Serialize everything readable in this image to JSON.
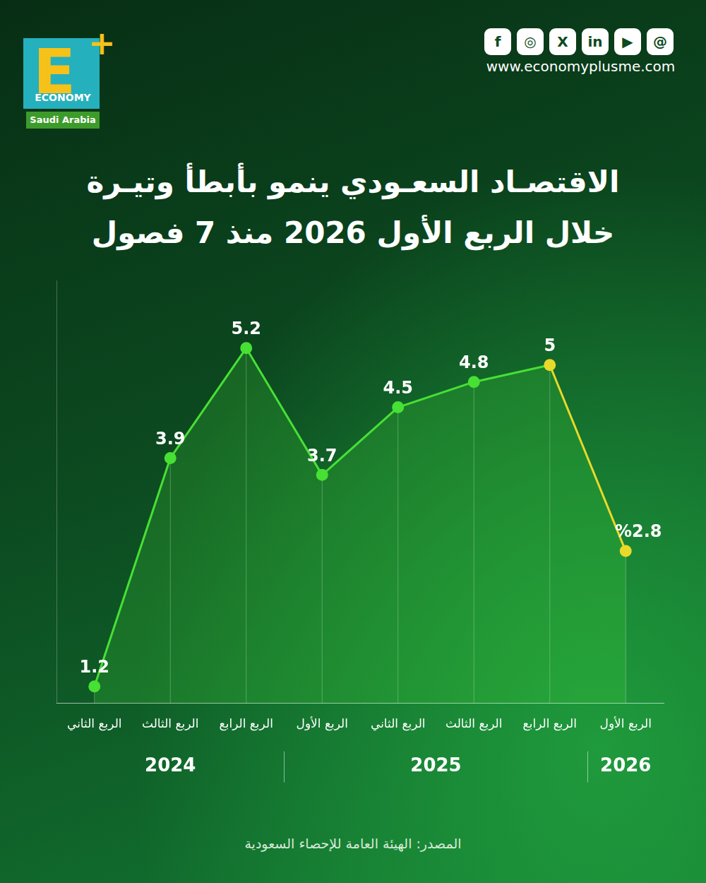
{
  "header": {
    "logo": {
      "letter": "E",
      "plus": "+",
      "name": "ECONOMY",
      "region": "Saudi Arabia"
    },
    "social_icons": [
      "f",
      "◎",
      "X",
      "in",
      "▶",
      "@"
    ],
    "website": "www.economyplusme.com"
  },
  "chart_data": {
    "type": "line",
    "title": [
      "الاقتصـاد السعـودي ينمو بأبطأ وتيـرة",
      "خلال الربع الأول 2026 منذ 7 فصول"
    ],
    "categories": [
      "الربع الثاني",
      "الربع الثالث",
      "الربع الرابع",
      "الربع الأول",
      "الربع الثاني",
      "الربع الثالث",
      "الربع الرابع",
      "الربع الأول"
    ],
    "years": [
      "2024",
      "2024",
      "2024",
      "2025",
      "2025",
      "2025",
      "2025",
      "2026"
    ],
    "values": [
      1.2,
      3.9,
      5.2,
      3.7,
      4.5,
      4.8,
      5,
      2.8
    ],
    "value_labels": [
      "1.2",
      "3.9",
      "5.2",
      "3.7",
      "4.5",
      "4.8",
      "5",
      "%2.8"
    ],
    "colors": [
      "#47e035",
      "#47e035",
      "#47e035",
      "#47e035",
      "#47e035",
      "#47e035",
      "#e9d92a",
      "#e9d92a"
    ],
    "marker": "circle",
    "ylim": [
      1,
      6
    ],
    "grid": true,
    "data_labels": true,
    "tick_labels": "x",
    "source": "المصدر: الهيئة العامة للإحصاء السعودية"
  }
}
